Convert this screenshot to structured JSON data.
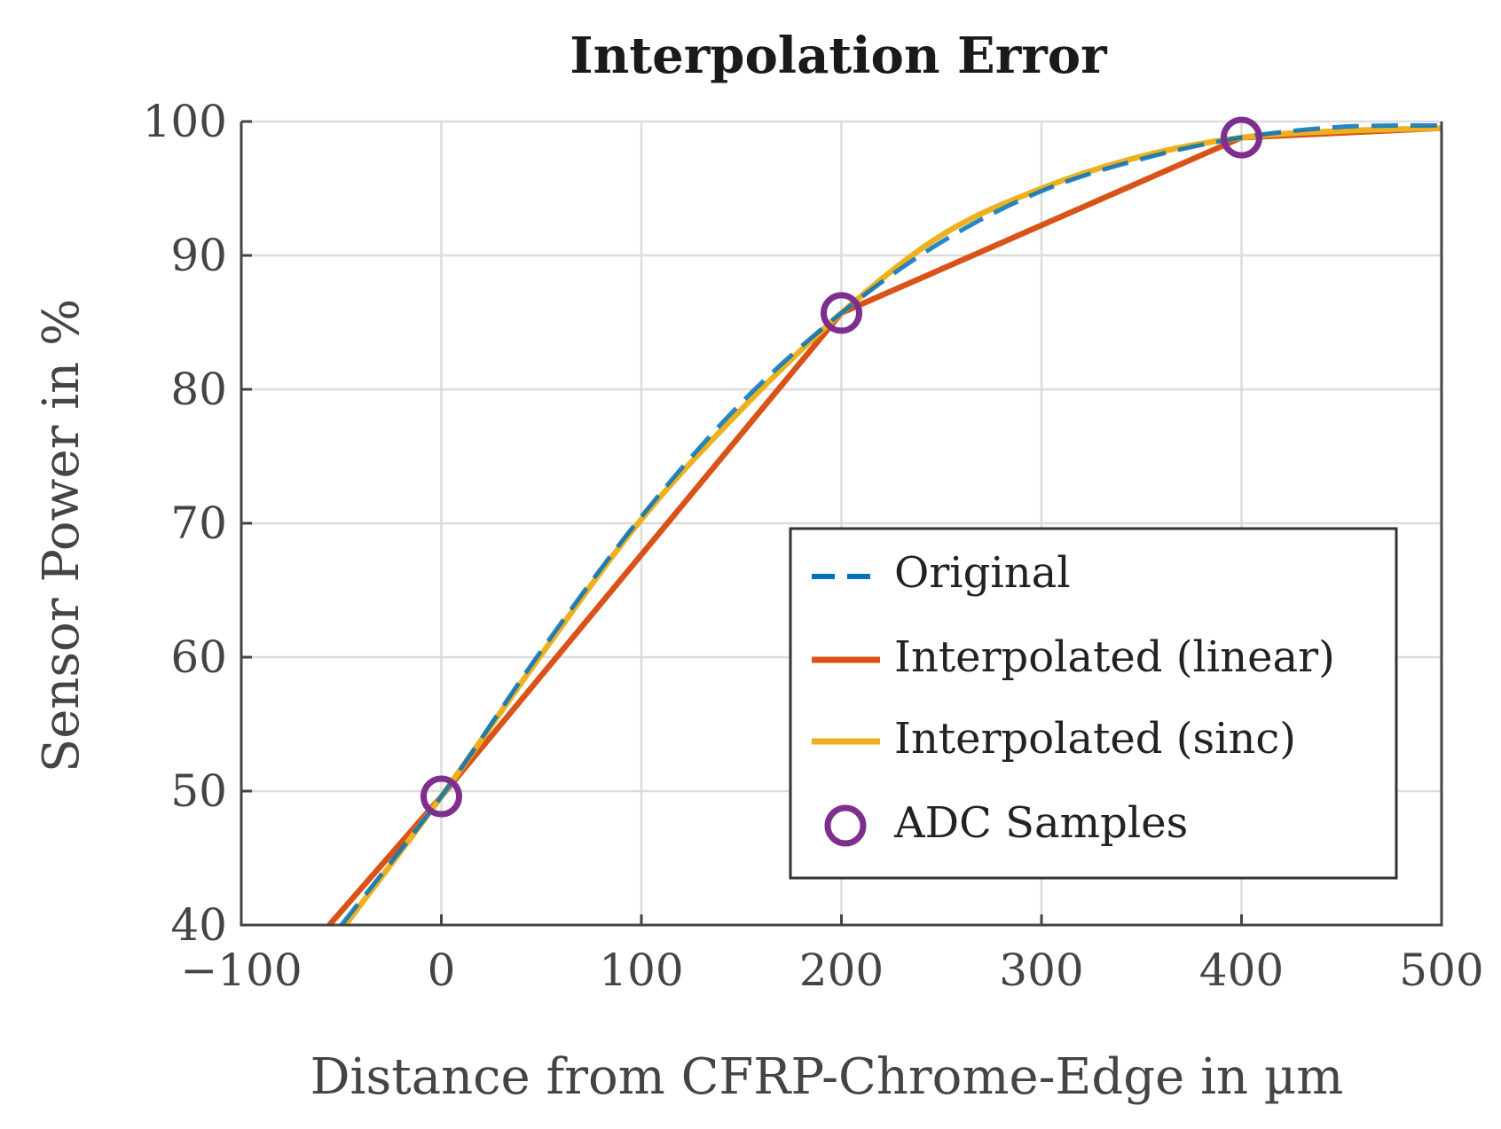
{
  "chart_data": {
    "type": "line",
    "title": "Interpolation Error",
    "xlabel": "Distance from CFRP-Chrome-Edge in µm",
    "ylabel": "Sensor Power in %",
    "xlim": [
      -100,
      500
    ],
    "ylim": [
      40,
      100
    ],
    "xticks": [
      -100,
      0,
      100,
      200,
      300,
      400,
      500
    ],
    "yticks": [
      40,
      50,
      60,
      70,
      80,
      90,
      100
    ],
    "xtick_labels": [
      "−100",
      "0",
      "100",
      "200",
      "300",
      "400",
      "500"
    ],
    "ytick_labels": [
      "40",
      "50",
      "60",
      "70",
      "80",
      "90",
      "100"
    ],
    "grid": true,
    "legend_position": "bottom-right",
    "series": [
      {
        "name": "Original",
        "style": "dashed",
        "color": "#0072BD",
        "x": [
          -50,
          0,
          50,
          100,
          150,
          200,
          250,
          300,
          350,
          400,
          450,
          500
        ],
        "y": [
          40,
          49.6,
          60.5,
          70.5,
          79,
          85.7,
          91,
          94.8,
          97.2,
          98.8,
          99.6,
          99.7
        ]
      },
      {
        "name": "Interpolated (linear)",
        "style": "solid",
        "color": "#D95319",
        "x": [
          -56,
          0,
          200,
          400,
          500
        ],
        "y": [
          40,
          49.6,
          85.7,
          98.8,
          99.5
        ]
      },
      {
        "name": "Interpolated (sinc)",
        "style": "solid",
        "color": "#EDB120",
        "x": [
          -48,
          0,
          50,
          100,
          150,
          200,
          250,
          300,
          350,
          400,
          450,
          500
        ],
        "y": [
          40,
          49.6,
          60.2,
          70.3,
          78.5,
          85.7,
          91.5,
          95.0,
          97.4,
          98.8,
          99.3,
          99.5
        ]
      },
      {
        "name": "ADC Samples",
        "style": "marker-circle",
        "color": "#7E2F8E",
        "x": [
          0,
          200,
          400
        ],
        "y": [
          49.6,
          85.7,
          98.8
        ]
      }
    ]
  }
}
